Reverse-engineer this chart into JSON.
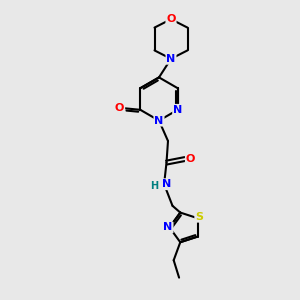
{
  "background_color": "#e8e8e8",
  "bond_color": "#000000",
  "atom_colors": {
    "N": "#0000ff",
    "O": "#ff0000",
    "S": "#cccc00",
    "H": "#008080",
    "C": "#000000"
  },
  "figsize": [
    3.0,
    3.0
  ],
  "dpi": 100
}
